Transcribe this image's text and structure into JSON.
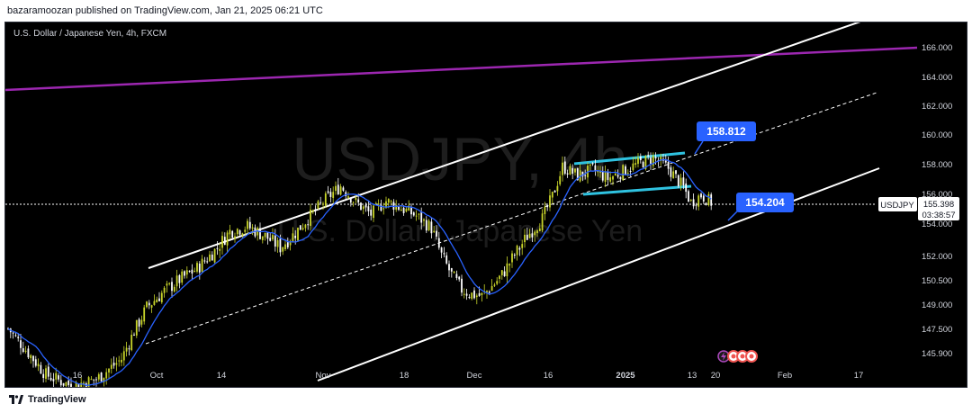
{
  "header": {
    "publisher_line": "bazaramoozan published on TradingView.com, Jan 21, 2025 06:21 UTC"
  },
  "footer": {
    "brand": "TradingView"
  },
  "chart_data": {
    "type": "candlestick",
    "title": "U.S. Dollar / Japanese Yen, 4h, FXCM",
    "watermark_symbol": "USDJPY, 4h",
    "watermark_name": "U.S. Dollar / Japanese Yen",
    "y_axis_ticks": [
      "166.000",
      "164.000",
      "162.000",
      "160.000",
      "158.000",
      "156.000",
      "154.000",
      "152.000",
      "150.500",
      "149.000",
      "147.500",
      "145.900"
    ],
    "x_axis_ticks": [
      "16",
      "Oct",
      "14",
      "Nov",
      "18",
      "Dec",
      "16",
      "2025",
      "13",
      "20",
      "Feb",
      "17"
    ],
    "symbol_label": "USDJPY",
    "last_price": "155.398",
    "countdown": "03:38:57",
    "annotations": [
      {
        "text": "158.812",
        "color": "#2962ff"
      },
      {
        "text": "154.204",
        "color": "#2962ff"
      }
    ],
    "price_path": [
      [
        0,
        147.5
      ],
      [
        8,
        145.9
      ],
      [
        15,
        144.5
      ],
      [
        25,
        143.8
      ],
      [
        35,
        144.2
      ],
      [
        45,
        145.5
      ],
      [
        50,
        147.3
      ],
      [
        55,
        148.8
      ],
      [
        62,
        149.8
      ],
      [
        68,
        150.5
      ],
      [
        75,
        151.2
      ],
      [
        82,
        152.3
      ],
      [
        88,
        153.5
      ],
      [
        95,
        153.8
      ],
      [
        102,
        153.2
      ],
      [
        108,
        152.5
      ],
      [
        114,
        153.4
      ],
      [
        120,
        154.5
      ],
      [
        126,
        155.6
      ],
      [
        132,
        156.5
      ],
      [
        138,
        155.4
      ],
      [
        144,
        154.6
      ],
      [
        150,
        155.5
      ],
      [
        156,
        155.0
      ],
      [
        162,
        154.5
      ],
      [
        168,
        153.7
      ],
      [
        172,
        152.0
      ],
      [
        176,
        150.8
      ],
      [
        180,
        149.9
      ],
      [
        184,
        149.6
      ],
      [
        188,
        149.5
      ],
      [
        192,
        150.1
      ],
      [
        196,
        150.8
      ],
      [
        200,
        151.8
      ],
      [
        206,
        153.2
      ],
      [
        212,
        154.3
      ],
      [
        216,
        155.8
      ],
      [
        220,
        157.8
      ],
      [
        226,
        157.2
      ],
      [
        232,
        157.6
      ],
      [
        238,
        157.0
      ],
      [
        244,
        157.5
      ],
      [
        250,
        158.0
      ],
      [
        256,
        158.4
      ],
      [
        262,
        157.7
      ],
      [
        268,
        156.4
      ],
      [
        271,
        155.4
      ],
      [
        275,
        155.9
      ],
      [
        279,
        155.4
      ]
    ],
    "lines": {
      "channel_color": "#ffffff",
      "midline_style": "dashed",
      "flag_color": "#2fc2e0",
      "long_term_color": "#9c27b0",
      "moving_average_color": "#2962ff",
      "candle_colors": {
        "up": "#c9d52a",
        "down": "#ffffff"
      }
    }
  }
}
